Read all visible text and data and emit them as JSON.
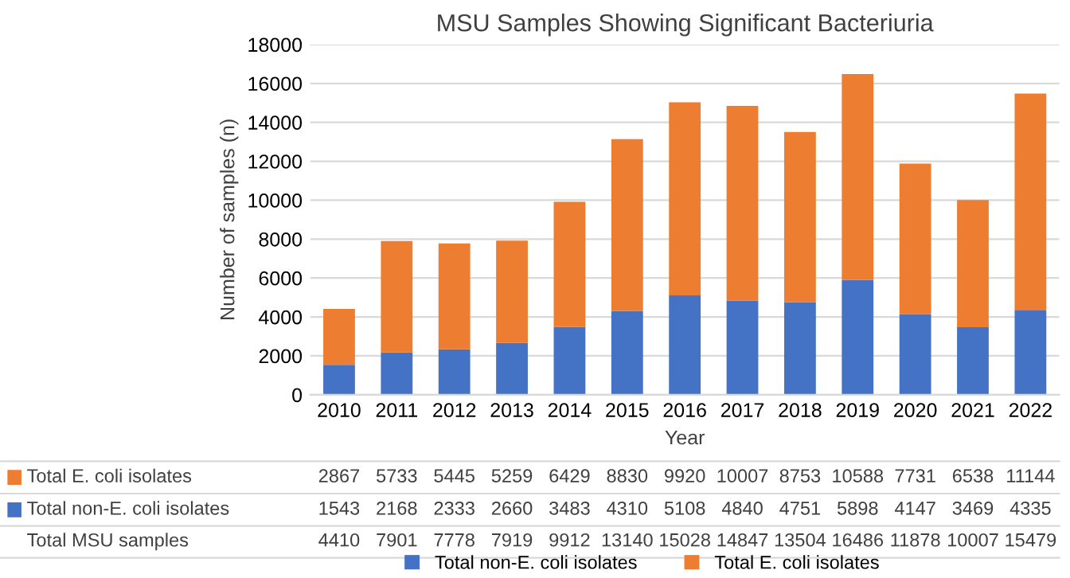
{
  "chart_data": {
    "type": "bar",
    "title": "MSU Samples Showing Significant Bacteriuria",
    "xlabel": "Year",
    "ylabel": "Number of samples (n)",
    "categories": [
      "2010",
      "2011",
      "2012",
      "2013",
      "2014",
      "2015",
      "2016",
      "2017",
      "2018",
      "2019",
      "2020",
      "2021",
      "2022"
    ],
    "stacked": true,
    "series": [
      {
        "name": "Total non-E. coli isolates",
        "color": "#4472c4",
        "values": [
          1543,
          2168,
          2333,
          2660,
          3483,
          4310,
          5108,
          4840,
          4751,
          5898,
          4147,
          3469,
          4335
        ]
      },
      {
        "name": "Total E. coli isolates",
        "color": "#ed7d31",
        "values": [
          2867,
          5733,
          5445,
          5259,
          6429,
          8830,
          9920,
          10007,
          8753,
          10588,
          7731,
          6538,
          11144
        ]
      }
    ],
    "annotations": [
      "Total MSU samples",
      "4410",
      "7901",
      "7778",
      "7919",
      "9912",
      "13140",
      "15028",
      "14847",
      "13504",
      "16486",
      "11878",
      "10007",
      "15479"
    ],
    "data_labels": true,
    "ylim": [
      0,
      18000
    ],
    "yticks": [
      0,
      2000,
      4000,
      6000,
      8000,
      10000,
      12000,
      14000,
      16000,
      18000
    ],
    "grid": "y",
    "legend": "bottom"
  }
}
